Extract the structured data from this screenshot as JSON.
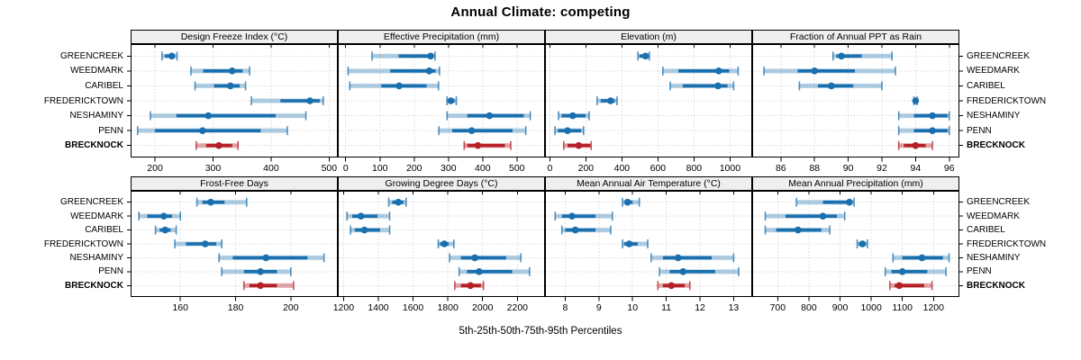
{
  "title": "Annual Climate: competing",
  "caption": "5th-25th-50th-75th-95th Percentiles",
  "colors": {
    "series": "#1a6fae",
    "series_band": "rgba(26,111,174,0.35)",
    "highlight": "#b42025",
    "highlight_band": "rgba(180,32,37,0.40)",
    "grid": "#c8c8c8",
    "strip_bg": "#efefef",
    "border": "#000000"
  },
  "chart_data": {
    "type": "interval",
    "percentiles": [
      5,
      25,
      50,
      75,
      95
    ],
    "sites": [
      "GREENCREEK",
      "WEEDMARK",
      "CARIBEL",
      "FREDERICKTOWN",
      "NESHAMINY",
      "PENN",
      "BRECKNOCK"
    ],
    "highlight_site": "BRECKNOCK",
    "legend_position": "none",
    "grid": "dotted",
    "panels": [
      {
        "title": "Design Freeze Index (°C)",
        "row": 0,
        "col": 0,
        "xlim": [
          158,
          515
        ],
        "ticks": [
          200,
          300,
          400,
          500
        ],
        "values": [
          [
            212,
            217,
            229,
            234,
            238
          ],
          [
            262,
            283,
            333,
            351,
            363
          ],
          [
            269,
            302,
            330,
            346,
            356
          ],
          [
            366,
            416,
            467,
            484,
            490
          ],
          [
            192,
            237,
            292,
            408,
            460
          ],
          [
            170,
            200,
            282,
            382,
            428
          ],
          [
            271,
            288,
            310,
            333,
            343
          ]
        ]
      },
      {
        "title": "Effective Precipitation (mm)",
        "row": 0,
        "col": 1,
        "xlim": [
          -23,
          582
        ],
        "ticks": [
          0,
          100,
          200,
          300,
          400,
          500
        ],
        "values": [
          [
            77,
            154,
            248,
            257,
            261
          ],
          [
            7,
            130,
            244,
            262,
            274
          ],
          [
            12,
            104,
            156,
            236,
            271
          ],
          [
            296,
            300,
            307,
            318,
            323
          ],
          [
            296,
            355,
            420,
            520,
            539
          ],
          [
            272,
            311,
            368,
            487,
            526
          ],
          [
            346,
            355,
            386,
            465,
            482
          ]
        ]
      },
      {
        "title": "Elevation (m)",
        "row": 0,
        "col": 2,
        "xlim": [
          -27,
          1123
        ],
        "ticks": [
          0,
          200,
          400,
          600,
          800,
          1000
        ],
        "values": [
          [
            489,
            497,
            531,
            542,
            552
          ],
          [
            627,
            713,
            937,
            995,
            1045
          ],
          [
            668,
            738,
            933,
            986,
            1020
          ],
          [
            262,
            282,
            337,
            360,
            373
          ],
          [
            48,
            65,
            127,
            198,
            218
          ],
          [
            28,
            44,
            98,
            174,
            187
          ],
          [
            77,
            98,
            160,
            224,
            229
          ]
        ]
      },
      {
        "title": "Fraction of Annual PPT as Rain",
        "row": 0,
        "col": 3,
        "xlim": [
          84.3,
          96.6
        ],
        "ticks": [
          86,
          88,
          90,
          92,
          94,
          96
        ],
        "values": [
          [
            89.1,
            89.3,
            89.6,
            90.8,
            92.6
          ],
          [
            85.0,
            87.0,
            88.0,
            90.4,
            92.8
          ],
          [
            87.1,
            88.2,
            89.0,
            90.3,
            92.0
          ],
          [
            93.9,
            94.0,
            94.0,
            94.0,
            94.1
          ],
          [
            93.0,
            93.9,
            95.0,
            95.9,
            96.0
          ],
          [
            93.0,
            93.9,
            95.0,
            95.9,
            96.0
          ],
          [
            93.0,
            93.3,
            94.0,
            94.6,
            95.0
          ]
        ]
      },
      {
        "title": "Frost-Free Days",
        "row": 1,
        "col": 0,
        "xlim": [
          142,
          217
        ],
        "ticks": [
          160,
          180,
          200
        ],
        "values": [
          [
            166,
            168,
            171,
            176,
            184
          ],
          [
            145,
            148,
            154,
            157,
            160
          ],
          [
            151,
            152.5,
            154.5,
            156.5,
            158.5
          ],
          [
            158,
            162,
            169,
            173,
            175
          ],
          [
            174,
            179,
            191,
            206,
            212
          ],
          [
            175,
            183,
            189,
            195,
            200
          ],
          [
            183,
            185,
            189,
            195,
            201
          ]
        ]
      },
      {
        "title": "Growing Degree Days (°C)",
        "row": 1,
        "col": 1,
        "xlim": [
          1167,
          2359
        ],
        "ticks": [
          1200,
          1400,
          1600,
          1800,
          2000,
          2200
        ],
        "values": [
          [
            1460,
            1480,
            1515,
            1545,
            1560
          ],
          [
            1220,
            1250,
            1300,
            1395,
            1465
          ],
          [
            1240,
            1265,
            1320,
            1410,
            1465
          ],
          [
            1745,
            1755,
            1780,
            1805,
            1835
          ],
          [
            1810,
            1875,
            1955,
            2135,
            2220
          ],
          [
            1865,
            1910,
            1980,
            2170,
            2270
          ],
          [
            1840,
            1875,
            1930,
            1990,
            2005
          ]
        ]
      },
      {
        "title": "Mean Annual Air Temperature (°C)",
        "row": 1,
        "col": 2,
        "xlim": [
          7.4,
          13.55
        ],
        "ticks": [
          8,
          9,
          10,
          11,
          12,
          13
        ],
        "values": [
          [
            9.7,
            9.8,
            9.85,
            10.0,
            10.2
          ],
          [
            7.7,
            7.9,
            8.2,
            8.9,
            9.4
          ],
          [
            7.9,
            8.0,
            8.3,
            8.9,
            9.35
          ],
          [
            9.7,
            9.75,
            9.9,
            10.15,
            10.45
          ],
          [
            10.55,
            10.9,
            11.35,
            12.35,
            13.0
          ],
          [
            10.8,
            11.1,
            11.5,
            12.45,
            13.15
          ],
          [
            10.75,
            10.9,
            11.15,
            11.55,
            11.7
          ]
        ]
      },
      {
        "title": "Mean Annual Precipitation (mm)",
        "row": 1,
        "col": 3,
        "xlim": [
          618,
          1283
        ],
        "ticks": [
          700,
          800,
          900,
          1000,
          1100,
          1200
        ],
        "values": [
          [
            760,
            845,
            930,
            938,
            945
          ],
          [
            660,
            725,
            845,
            890,
            915
          ],
          [
            660,
            695,
            765,
            840,
            867
          ],
          [
            955,
            960,
            972,
            983,
            988
          ],
          [
            1070,
            1100,
            1163,
            1230,
            1250
          ],
          [
            1045,
            1065,
            1100,
            1180,
            1240
          ],
          [
            1060,
            1075,
            1090,
            1170,
            1195
          ]
        ]
      }
    ]
  }
}
